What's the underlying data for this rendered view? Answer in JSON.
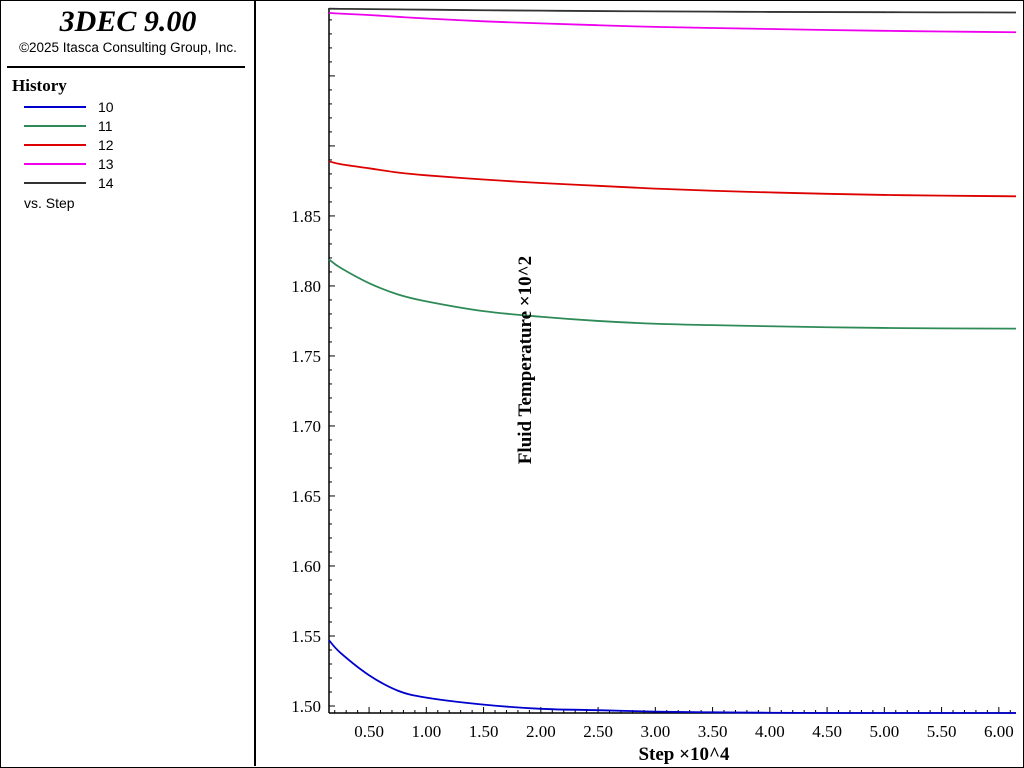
{
  "app": {
    "title": "3DEC 9.00",
    "copyright": "©2025 Itasca Consulting Group, Inc."
  },
  "legend": {
    "heading": "History",
    "items": [
      {
        "label": "10",
        "color": "#0000cc"
      },
      {
        "label": "11",
        "color": "#2e8b57"
      },
      {
        "label": "12",
        "color": "#dd0000"
      },
      {
        "label": "13",
        "color": "#ee00ee"
      },
      {
        "label": "14",
        "color": "#333333"
      }
    ],
    "vs_label": "vs. Step"
  },
  "chart_data": {
    "type": "line",
    "xlabel": "Step ×10^4",
    "ylabel": "Fluid Temperature ×10^2",
    "xlim": [
      0.15,
      6.15
    ],
    "ylim": [
      1.495,
      1.9985
    ],
    "xticks": [
      "0.50",
      "1.00",
      "1.50",
      "2.00",
      "2.50",
      "3.00",
      "3.50",
      "4.00",
      "4.50",
      "5.00",
      "5.50",
      "6.00"
    ],
    "yticks": [
      "1.50",
      "1.55",
      "1.60",
      "1.65",
      "1.70",
      "1.75",
      "1.80",
      "1.85"
    ],
    "x": [
      0.15,
      0.25,
      0.5,
      0.75,
      1.0,
      1.5,
      2.0,
      2.5,
      3.0,
      3.5,
      4.0,
      4.5,
      5.0,
      5.5,
      6.15
    ],
    "series": [
      {
        "name": "10",
        "color": "#0000cc",
        "values": [
          1.547,
          1.538,
          1.522,
          1.511,
          1.506,
          1.501,
          1.498,
          1.497,
          1.496,
          1.4955,
          1.4952,
          1.495,
          1.495,
          1.495,
          1.495
        ]
      },
      {
        "name": "11",
        "color": "#2e8b57",
        "values": [
          1.819,
          1.813,
          1.802,
          1.794,
          1.789,
          1.782,
          1.778,
          1.775,
          1.773,
          1.772,
          1.7712,
          1.7705,
          1.77,
          1.7697,
          1.7695
        ]
      },
      {
        "name": "12",
        "color": "#dd0000",
        "values": [
          1.889,
          1.887,
          1.884,
          1.881,
          1.879,
          1.876,
          1.8735,
          1.8715,
          1.8695,
          1.868,
          1.8668,
          1.8658,
          1.865,
          1.8645,
          1.864
        ]
      },
      {
        "name": "13",
        "color": "#ee00ee",
        "values": [
          1.995,
          1.9945,
          1.9935,
          1.9922,
          1.991,
          1.989,
          1.9875,
          1.9862,
          1.985,
          1.9842,
          1.9835,
          1.9828,
          1.9822,
          1.9817,
          1.9812
        ]
      },
      {
        "name": "14",
        "color": "#333333",
        "values": [
          1.998,
          1.9979,
          1.9977,
          1.9975,
          1.9973,
          1.9969,
          1.9966,
          1.9963,
          1.9961,
          1.9959,
          1.9957,
          1.9956,
          1.9955,
          1.9954,
          1.9953
        ]
      }
    ]
  }
}
